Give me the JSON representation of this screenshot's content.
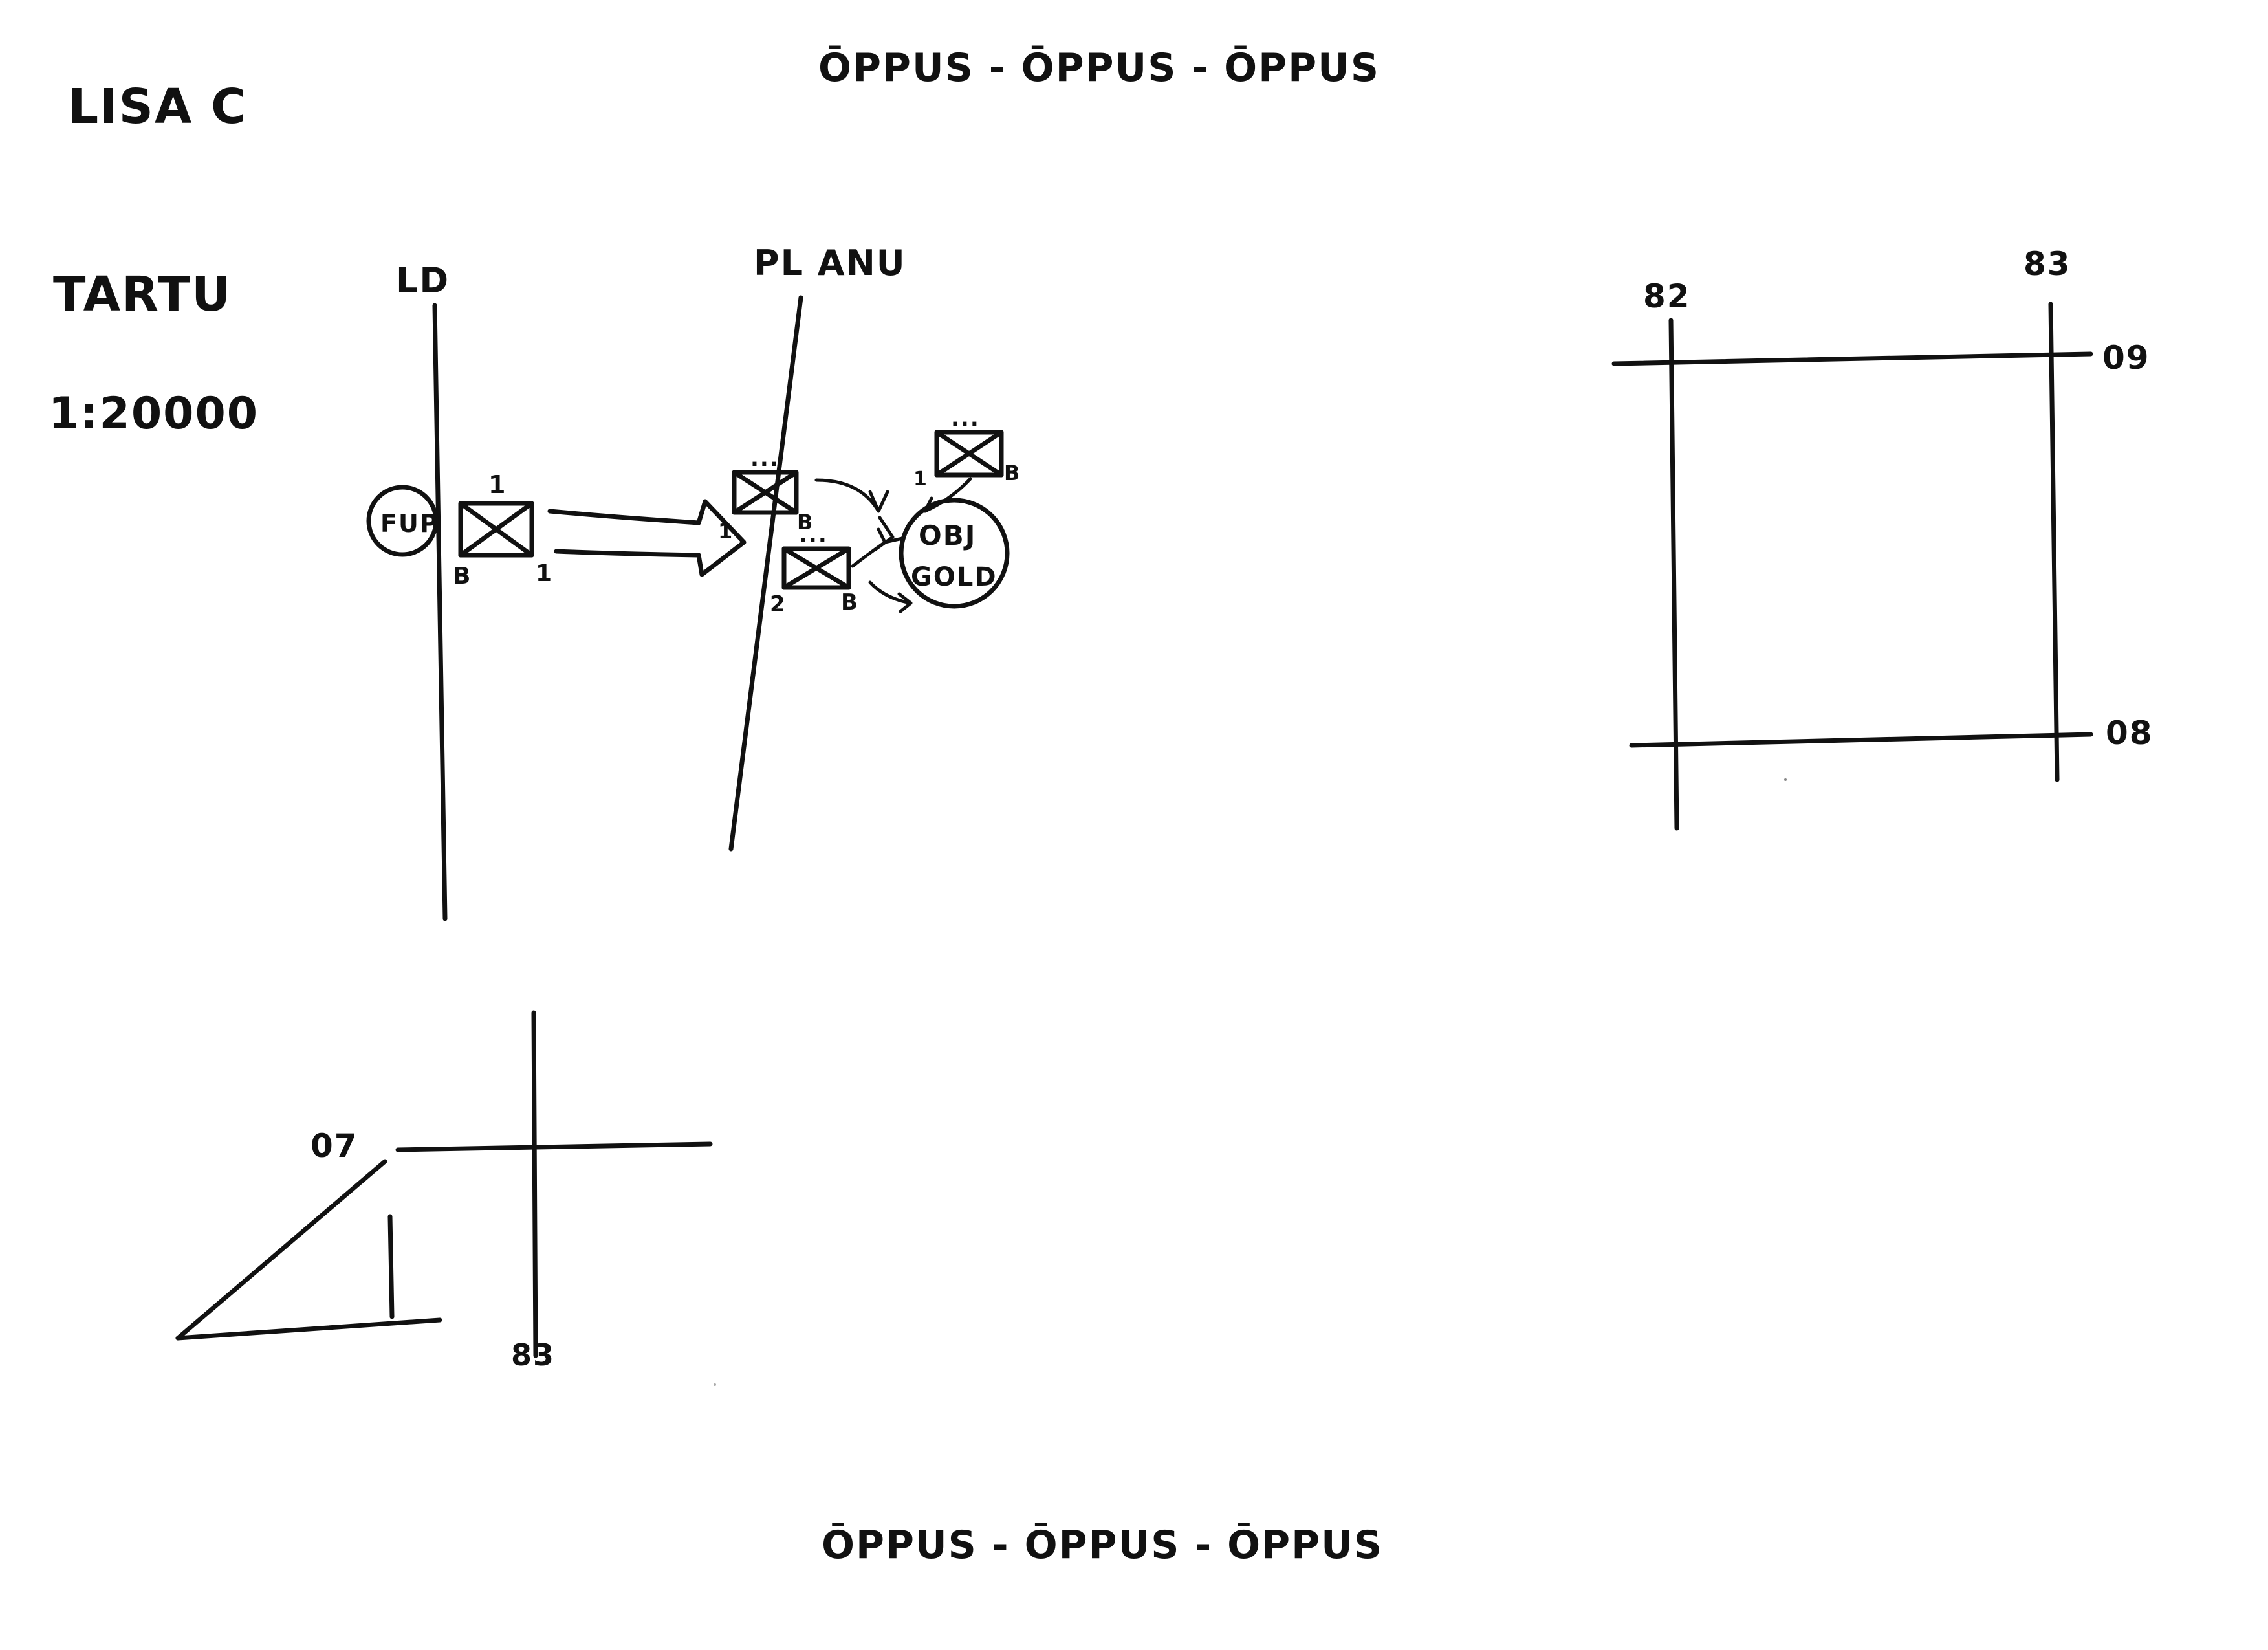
{
  "sheet": {
    "header_banner": "ŌPPUS - ŌPPUS - ŌPPUS",
    "footer_banner": "ŌPPUS - ŌPPUS - ŌPPUS",
    "author": "LISA C",
    "map_name": "TARTU",
    "scale": "1:20000"
  },
  "sketch": {
    "line_left_label": "LD",
    "line_right_label": "PL ANU",
    "fup_label": "FUP",
    "objective_label_1": "OBJ",
    "objective_label_2": "GOLD",
    "unit_left_top": "1",
    "unit_left_bottom_left": "B",
    "unit_left_bottom_right": "1",
    "unit_mid_left": "1",
    "unit_mid_right": "B",
    "unit_lower_left": "2",
    "unit_lower_right": "B",
    "unit_top_right_left": "1",
    "unit_top_right_right": "B",
    "echelon": "..."
  },
  "grid_box": {
    "easting_left": "82",
    "easting_right": "83",
    "northing_top": "09",
    "northing_bottom": "08"
  },
  "north_grid": {
    "northing": "07",
    "easting": "83"
  },
  "colors": {
    "ink": "#111111",
    "paper": "#ffffff"
  }
}
